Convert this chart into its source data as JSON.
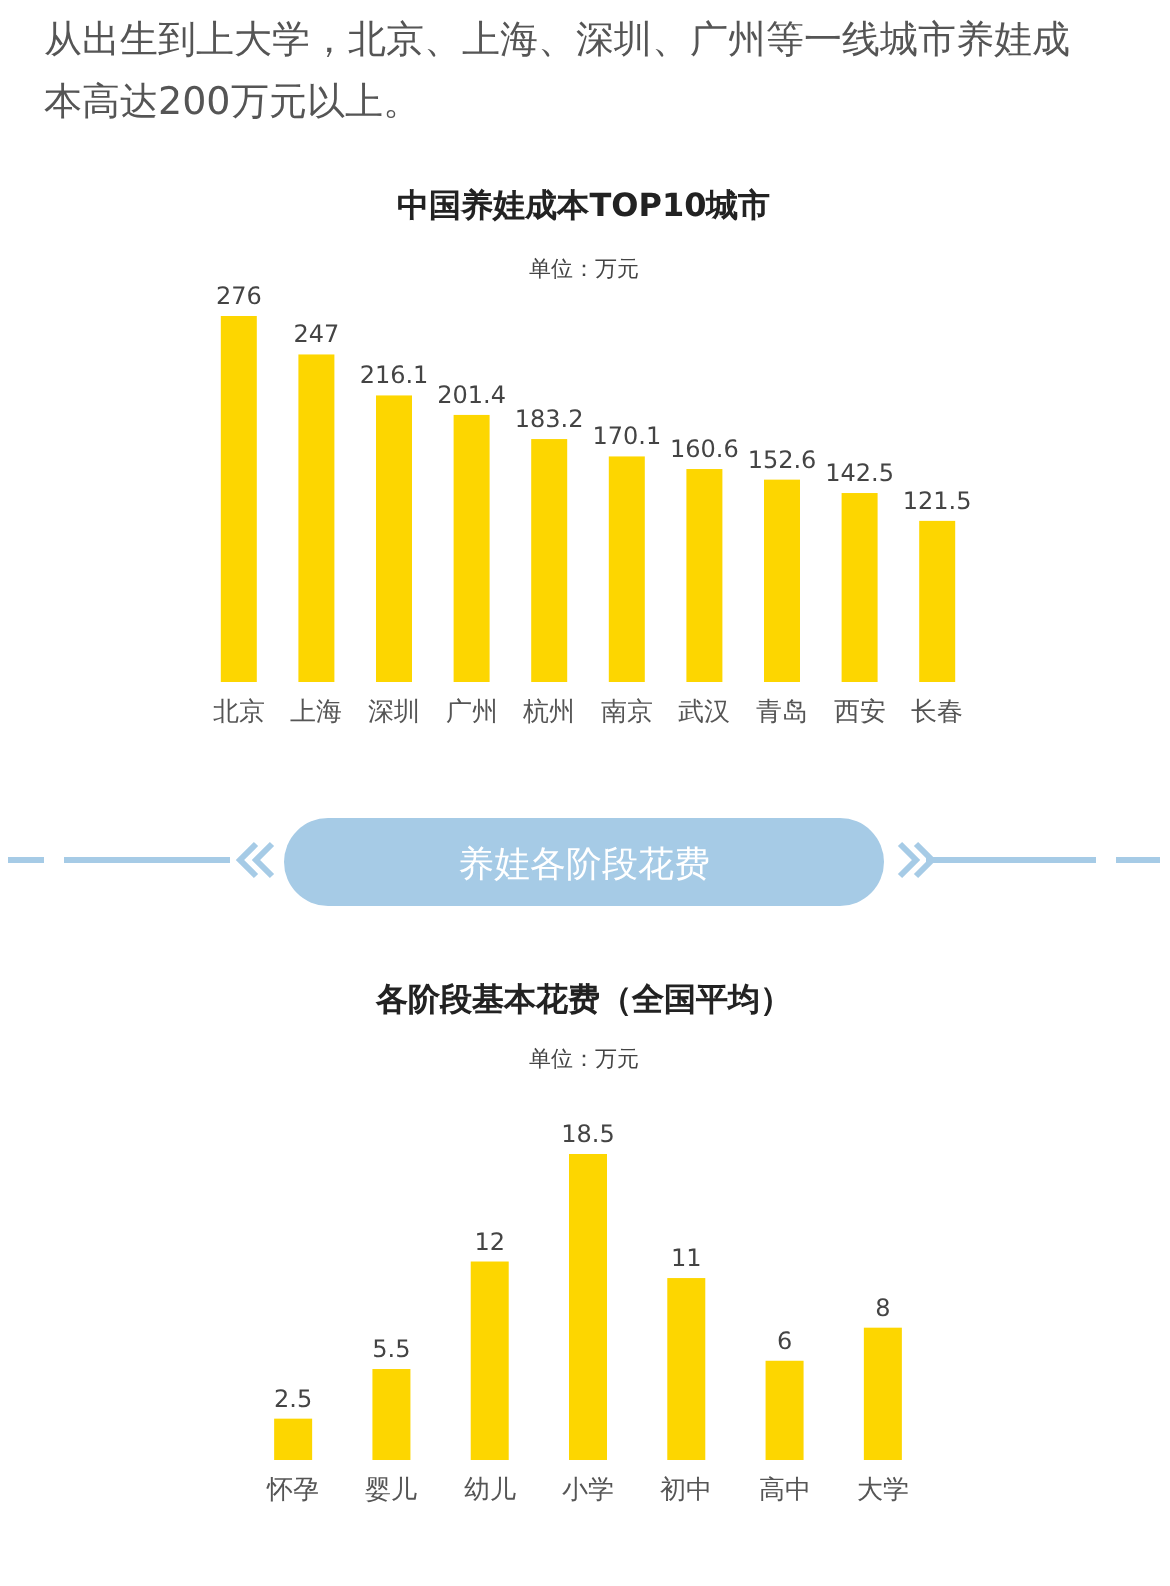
{
  "chart_data": [
    {
      "type": "bar",
      "title": "中国养娃成本TOP10城市",
      "subtitle": "单位：万元",
      "annotations": [
        "从出生到上大学，北京、上海、深圳、广州等一线城市养娃成本高达200万元以上。"
      ],
      "categories": [
        "北京",
        "上海",
        "深圳",
        "广州",
        "杭州",
        "南京",
        "武汉",
        "青岛",
        "西安",
        "长春"
      ],
      "values": [
        276,
        247,
        216.1,
        201.4,
        183.2,
        170.1,
        160.6,
        152.6,
        142.5,
        121.5
      ],
      "color": "#fdd600",
      "data_labels": true
    },
    {
      "type": "bar",
      "title": "各阶段基本花费（全国平均）",
      "subtitle": "单位：万元",
      "annotations": [
        "养娃各阶段花费"
      ],
      "categories": [
        "怀孕",
        "婴儿",
        "幼儿",
        "小学",
        "初中",
        "高中",
        "大学"
      ],
      "values": [
        2.5,
        5.5,
        12,
        18.5,
        11,
        6,
        8
      ],
      "color": "#fdd600",
      "data_labels": true
    }
  ]
}
